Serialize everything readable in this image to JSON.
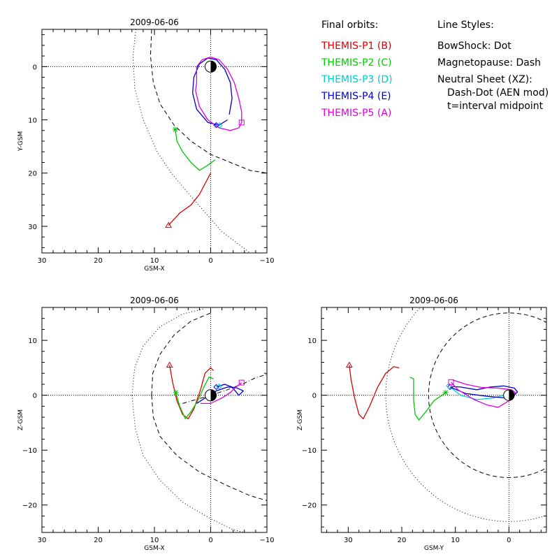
{
  "legend": {
    "orbits_title": "Final orbits:",
    "probes": [
      {
        "label": "THEMIS-P1 (B)",
        "color": "#dd0000"
      },
      {
        "label": "THEMIS-P2 (C)",
        "color": "#00cc00"
      },
      {
        "label": "THEMIS-P3 (D)",
        "color": "#00cccc"
      },
      {
        "label": "THEMIS-P4 (E)",
        "color": "#0000cc"
      },
      {
        "label": "THEMIS-P5 (A)",
        "color": "#dd00dd"
      }
    ],
    "styles_title": "Line Styles:",
    "styles": [
      "BowShock: Dot",
      "Magnetopause: Dash",
      "Neutral Sheet (XZ):",
      "Dash-Dot (AEN mod)",
      "t=interval midpoint"
    ]
  },
  "chart_data": [
    {
      "type": "line",
      "title": "2009-06-06",
      "xlabel": "GSM-X",
      "ylabel": "Y-GSM",
      "xlim": [
        30,
        -10
      ],
      "ylim": [
        35,
        -7
      ],
      "xticks": [
        30,
        20,
        10,
        0,
        -10
      ],
      "yticks": [
        0,
        10,
        20,
        30
      ],
      "xticklabels": [
        "30",
        "20",
        "10",
        "0",
        "−10"
      ],
      "yticklabels": [
        "0",
        "10",
        "20",
        "30"
      ],
      "series": [
        {
          "name": "THEMIS-P1 (B)",
          "color": "#dd0000",
          "points": [
            [
              7.5,
              29.8
            ],
            [
              5.5,
              27.5
            ],
            [
              3.5,
              26
            ],
            [
              2,
              24
            ],
            [
              1,
              22
            ],
            [
              0,
              20
            ]
          ]
        },
        {
          "name": "THEMIS-P2 (C)",
          "color": "#00cc00",
          "points": [
            [
              6.3,
              11.8
            ],
            [
              6,
              14
            ],
            [
              5,
              16
            ],
            [
              3.5,
              18
            ],
            [
              2,
              19.5
            ],
            [
              0.5,
              18.5
            ],
            [
              -0.8,
              17.5
            ]
          ]
        },
        {
          "name": "THEMIS-P3 (D)",
          "color": "#00cccc",
          "points": [
            [
              -1.6,
              11
            ]
          ]
        },
        {
          "name": "THEMIS-P4 (E)",
          "color": "#0000cc",
          "points": [
            [
              -3.3,
              9
            ],
            [
              -3.8,
              6
            ],
            [
              -3.5,
              3
            ],
            [
              -2.5,
              0.5
            ],
            [
              -1,
              -1.3
            ],
            [
              0.5,
              -1.6
            ],
            [
              2,
              -0.5
            ],
            [
              3,
              2
            ],
            [
              3.2,
              5
            ],
            [
              2.5,
              8
            ],
            [
              0.5,
              10.5
            ],
            [
              -1.5,
              11
            ],
            [
              -3,
              10
            ]
          ]
        },
        {
          "name": "THEMIS-P5 (A)",
          "color": "#dd00dd",
          "points": [
            [
              2.5,
              3
            ],
            [
              2.5,
              0
            ],
            [
              1.5,
              -1.3
            ],
            [
              0,
              -1.8
            ],
            [
              -1.5,
              -1.3
            ],
            [
              -3,
              0.5
            ],
            [
              -4.2,
              3
            ],
            [
              -5,
              6
            ],
            [
              -5.5,
              8.5
            ],
            [
              -5.5,
              10.5
            ],
            [
              -5,
              11.5
            ],
            [
              -3.5,
              12
            ],
            [
              -1.5,
              11.5
            ],
            [
              0.5,
              10
            ],
            [
              2,
              7.5
            ],
            [
              2.7,
              4.5
            ],
            [
              2.5,
              3
            ]
          ]
        }
      ],
      "boundaries": {
        "bowshock": [
          [
            13.3,
            -7
          ],
          [
            13.8,
            -2
          ],
          [
            13.5,
            4
          ],
          [
            12,
            10
          ],
          [
            9.5,
            16
          ],
          [
            7,
            20
          ],
          [
            3,
            25
          ],
          [
            -2,
            31
          ],
          [
            -7,
            35
          ]
        ],
        "magnetopause": [
          [
            10.5,
            -7
          ],
          [
            10.7,
            -2
          ],
          [
            10.2,
            3
          ],
          [
            9,
            7
          ],
          [
            6.5,
            11
          ],
          [
            3.5,
            14
          ],
          [
            0,
            16.5
          ],
          [
            -3.5,
            18
          ],
          [
            -7,
            19.5
          ],
          [
            -10,
            20
          ]
        ]
      },
      "markers": {
        "start": [
          {
            "x": 7.5,
            "y": 29.8,
            "color": "#dd0000",
            "shape": "triangle"
          },
          {
            "x": 6.3,
            "y": 11.8,
            "color": "#00cc00",
            "shape": "asterisk"
          },
          {
            "x": -1,
            "y": 11,
            "color": "#0000cc",
            "shape": "diamond"
          },
          {
            "x": -1.6,
            "y": 11,
            "color": "#00cccc",
            "shape": "diamond"
          },
          {
            "x": -5.5,
            "y": 10.5,
            "color": "#dd00dd",
            "shape": "square"
          }
        ]
      },
      "earth": true
    },
    {
      "type": "line",
      "title": "2009-06-06",
      "xlabel": "GSM-X",
      "ylabel": "Z-GSM",
      "xlim": [
        30,
        -10
      ],
      "ylim": [
        -25,
        16
      ],
      "xticks": [
        30,
        20,
        10,
        0,
        -10
      ],
      "yticks": [
        10,
        0,
        -10,
        -20
      ],
      "xticklabels": [
        "30",
        "20",
        "10",
        "0",
        "−10"
      ],
      "yticklabels": [
        "10",
        "0",
        "−10",
        "−20"
      ],
      "series": [
        {
          "name": "THEMIS-P1 (B)",
          "color": "#dd0000",
          "points": [
            [
              7.3,
              5.5
            ],
            [
              6.8,
              2.5
            ],
            [
              6,
              -1
            ],
            [
              5,
              -3.5
            ],
            [
              4,
              -4.3
            ],
            [
              3,
              -2.5
            ],
            [
              1.8,
              1
            ],
            [
              1,
              4
            ],
            [
              0,
              5
            ],
            [
              -0.5,
              4.5
            ]
          ]
        },
        {
          "name": "THEMIS-P2 (C)",
          "color": "#00cc00",
          "points": [
            [
              6.2,
              0.5
            ],
            [
              5.5,
              -2
            ],
            [
              4.5,
              -4.3
            ],
            [
              3.5,
              -3
            ],
            [
              2.3,
              -1
            ],
            [
              1.2,
              1.5
            ],
            [
              0.3,
              3.3
            ],
            [
              -0.5,
              3
            ]
          ]
        },
        {
          "name": "THEMIS-P3 (D)",
          "color": "#00cccc",
          "points": [
            [
              -1.5,
              1.6
            ]
          ]
        },
        {
          "name": "THEMIS-P4 (E)",
          "color": "#0000cc",
          "points": [
            [
              2.5,
              -1.5
            ],
            [
              1,
              -0.5
            ],
            [
              -1,
              0.8
            ],
            [
              -3,
              1.5
            ],
            [
              -4.5,
              1.4
            ],
            [
              -5.8,
              0.8
            ],
            [
              -5,
              0
            ],
            [
              -3.8,
              1.5
            ],
            [
              -2.5,
              2
            ],
            [
              -1,
              1.5
            ]
          ]
        },
        {
          "name": "THEMIS-P5 (A)",
          "color": "#dd00dd",
          "points": [
            [
              1.8,
              -1.5
            ],
            [
              0,
              -1.5
            ],
            [
              -2,
              -0.5
            ],
            [
              -3.5,
              0.5
            ],
            [
              -4.5,
              1.5
            ],
            [
              -5.5,
              2.3
            ]
          ]
        }
      ],
      "boundaries": {
        "bowshock": [
          [
            14,
            0
          ],
          [
            13.5,
            5
          ],
          [
            12,
            9
          ],
          [
            9,
            12.5
          ],
          [
            5,
            14.8
          ],
          [
            1,
            15.8
          ]
        ],
        "bowshock_lower": [
          [
            14,
            0
          ],
          [
            13.4,
            -6
          ],
          [
            12,
            -11
          ],
          [
            9,
            -15.5
          ],
          [
            5,
            -19.5
          ],
          [
            0,
            -22.5
          ],
          [
            -4,
            -24.5
          ],
          [
            -6,
            -25
          ]
        ],
        "magnetopause": [
          [
            10.5,
            0
          ],
          [
            10.3,
            4
          ],
          [
            9,
            7.5
          ],
          [
            6.5,
            11
          ],
          [
            3.5,
            13.5
          ],
          [
            0,
            15
          ]
        ],
        "magnetopause_lower": [
          [
            10.5,
            0
          ],
          [
            10.2,
            -4
          ],
          [
            9,
            -7.5
          ],
          [
            6,
            -11
          ],
          [
            2,
            -14
          ],
          [
            -3,
            -16.5
          ],
          [
            -7,
            -18.3
          ],
          [
            -10,
            -19.2
          ]
        ],
        "neutral_sheet": [
          [
            5,
            -1.5
          ],
          [
            0,
            0
          ],
          [
            -3,
            1
          ],
          [
            -6,
            2.2
          ],
          [
            -8,
            3.2
          ],
          [
            -10,
            3.8
          ]
        ]
      },
      "markers": {
        "start": [
          {
            "x": 7.3,
            "y": 5.5,
            "color": "#dd0000",
            "shape": "triangle"
          },
          {
            "x": 6.2,
            "y": 0.5,
            "color": "#00cc00",
            "shape": "asterisk"
          },
          {
            "x": -1,
            "y": 1.5,
            "color": "#0000cc",
            "shape": "diamond"
          },
          {
            "x": -1.5,
            "y": 1.6,
            "color": "#00cccc",
            "shape": "diamond"
          },
          {
            "x": -5.5,
            "y": 2.3,
            "color": "#dd00dd",
            "shape": "square"
          }
        ]
      },
      "earth": true
    },
    {
      "type": "line",
      "title": "2009-06-06",
      "xlabel": "GSM-Y",
      "ylabel": "Z-GSM",
      "xlim": [
        35,
        -7
      ],
      "ylim": [
        -25,
        16
      ],
      "xticks": [
        30,
        20,
        10,
        0
      ],
      "yticks": [
        10,
        0,
        -10,
        -20
      ],
      "xticklabels": [
        "30",
        "20",
        "10",
        "0"
      ],
      "yticklabels": [
        "10",
        "0",
        "−10",
        "−20"
      ],
      "series": [
        {
          "name": "THEMIS-P1 (B)",
          "color": "#dd0000",
          "points": [
            [
              29.8,
              5.5
            ],
            [
              29.5,
              3
            ],
            [
              28.8,
              -0.5
            ],
            [
              28,
              -3.5
            ],
            [
              27.2,
              -4.3
            ],
            [
              26,
              -2
            ],
            [
              24.5,
              1.5
            ],
            [
              23,
              4
            ],
            [
              21.5,
              5.2
            ],
            [
              20.5,
              5
            ]
          ]
        },
        {
          "name": "THEMIS-P2 (C)",
          "color": "#00cc00",
          "points": [
            [
              18.5,
              3.3
            ],
            [
              17.8,
              3
            ],
            [
              17.8,
              -1
            ],
            [
              17.5,
              -3.5
            ],
            [
              16.8,
              -4.5
            ],
            [
              15.5,
              -3
            ],
            [
              14,
              -1
            ],
            [
              12.5,
              0
            ],
            [
              11.8,
              0.5
            ]
          ]
        },
        {
          "name": "THEMIS-P3 (D)",
          "color": "#00cccc",
          "points": [
            [
              11,
              1.5
            ],
            [
              9,
              0
            ],
            [
              6,
              -0.8
            ],
            [
              3,
              -0.5
            ],
            [
              1,
              0
            ],
            [
              0,
              0.5
            ]
          ]
        },
        {
          "name": "THEMIS-P4 (E)",
          "color": "#0000cc",
          "points": [
            [
              11,
              1.5
            ],
            [
              8,
              0.3
            ],
            [
              4,
              -0.2
            ],
            [
              0.5,
              -0.5
            ],
            [
              -1,
              0
            ],
            [
              -1.6,
              0.6
            ],
            [
              -1,
              1.3
            ],
            [
              1,
              1.7
            ],
            [
              3.5,
              1.5
            ],
            [
              6,
              1
            ],
            [
              9,
              1.5
            ],
            [
              10.5,
              1.6
            ]
          ]
        },
        {
          "name": "THEMIS-P5 (A)",
          "color": "#dd00dd",
          "points": [
            [
              10.8,
              2.4
            ],
            [
              9.5,
              1
            ],
            [
              6.5,
              -0.8
            ],
            [
              4,
              -1.8
            ],
            [
              2,
              -2.2
            ],
            [
              0,
              -1
            ],
            [
              -1.2,
              0.5
            ],
            [
              -0.5,
              1
            ],
            [
              2,
              1.3
            ],
            [
              5,
              1.4
            ],
            [
              8,
              2
            ],
            [
              10.5,
              2.8
            ]
          ]
        }
      ],
      "boundaries": {
        "bowshock_circle": {
          "cx": 0,
          "cy": 0,
          "r": 23
        },
        "magnetopause_circle": {
          "cx": 0,
          "cy": 0,
          "r": 15
        }
      },
      "markers": {
        "start": [
          {
            "x": 29.8,
            "y": 5.5,
            "color": "#dd0000",
            "shape": "triangle"
          },
          {
            "x": 11.8,
            "y": 0.5,
            "color": "#00cc00",
            "shape": "asterisk"
          },
          {
            "x": 11,
            "y": 1.5,
            "color": "#0000cc",
            "shape": "diamond"
          },
          {
            "x": 11.2,
            "y": 1.7,
            "color": "#00cccc",
            "shape": "diamond"
          },
          {
            "x": 10.8,
            "y": 2.4,
            "color": "#dd00dd",
            "shape": "square"
          }
        ]
      },
      "earth": true
    }
  ]
}
